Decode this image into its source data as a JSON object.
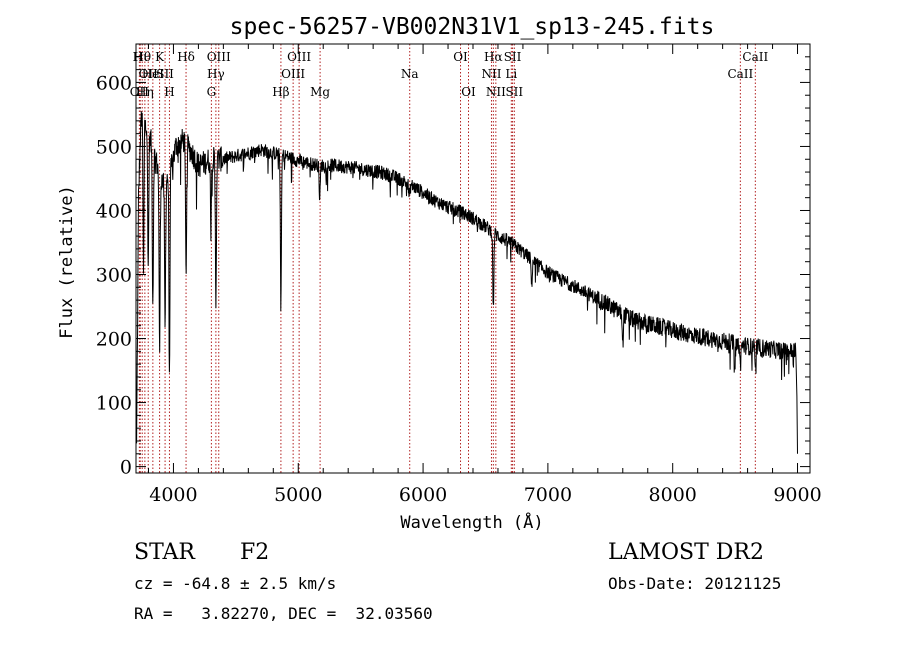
{
  "chart_data": {
    "type": "line",
    "title": "spec-56257-VB002N31V1_sp13-245.fits",
    "xlabel": "Wavelength (Å)",
    "ylabel": "Flux (relative)",
    "xlim": [
      3700,
      9100
    ],
    "ylim": [
      -10,
      660
    ],
    "xticks": [
      4000,
      5000,
      6000,
      7000,
      8000,
      9000
    ],
    "yticks": [
      0,
      100,
      200,
      300,
      400,
      500,
      600
    ],
    "grid": false,
    "line_color": "#000000",
    "marker_color": "#b22222",
    "continuum": [
      [
        3705,
        30
      ],
      [
        3720,
        420
      ],
      [
        3740,
        540
      ],
      [
        3760,
        560
      ],
      [
        3790,
        530
      ],
      [
        3830,
        500
      ],
      [
        3870,
        470
      ],
      [
        3920,
        440
      ],
      [
        3970,
        460
      ],
      [
        4020,
        500
      ],
      [
        4080,
        510
      ],
      [
        4150,
        490
      ],
      [
        4200,
        470
      ],
      [
        4300,
        480
      ],
      [
        4400,
        480
      ],
      [
        4500,
        485
      ],
      [
        4600,
        490
      ],
      [
        4700,
        495
      ],
      [
        4800,
        490
      ],
      [
        4900,
        485
      ],
      [
        5000,
        478
      ],
      [
        5100,
        473
      ],
      [
        5200,
        470
      ],
      [
        5300,
        470
      ],
      [
        5400,
        468
      ],
      [
        5500,
        465
      ],
      [
        5600,
        462
      ],
      [
        5700,
        457
      ],
      [
        5800,
        450
      ],
      [
        5900,
        440
      ],
      [
        6000,
        428
      ],
      [
        6100,
        415
      ],
      [
        6200,
        405
      ],
      [
        6300,
        398
      ],
      [
        6400,
        388
      ],
      [
        6500,
        375
      ],
      [
        6600,
        360
      ],
      [
        6700,
        350
      ],
      [
        6800,
        335
      ],
      [
        6900,
        318
      ],
      [
        7000,
        303
      ],
      [
        7100,
        292
      ],
      [
        7200,
        283
      ],
      [
        7300,
        272
      ],
      [
        7400,
        262
      ],
      [
        7500,
        250
      ],
      [
        7600,
        238
      ],
      [
        7700,
        228
      ],
      [
        7800,
        223
      ],
      [
        7900,
        218
      ],
      [
        8000,
        213
      ],
      [
        8100,
        208
      ],
      [
        8200,
        204
      ],
      [
        8300,
        200
      ],
      [
        8400,
        196
      ],
      [
        8500,
        192
      ],
      [
        8600,
        188
      ],
      [
        8700,
        186
      ],
      [
        8800,
        183
      ],
      [
        8900,
        180
      ],
      [
        8960,
        180
      ],
      [
        8985,
        185
      ],
      [
        8995,
        110
      ],
      [
        9000,
        20
      ]
    ],
    "absorption_features": [
      {
        "x": 3760,
        "depth": 260
      },
      {
        "x": 3798,
        "depth": 210
      },
      {
        "x": 3835,
        "depth": 240
      },
      {
        "x": 3889,
        "depth": 280
      },
      {
        "x": 3933,
        "depth": 230
      },
      {
        "x": 3968,
        "depth": 310
      },
      {
        "x": 4101,
        "depth": 200
      },
      {
        "x": 4300,
        "depth": 90
      },
      {
        "x": 4340,
        "depth": 220
      },
      {
        "x": 4861,
        "depth": 235
      },
      {
        "x": 5172,
        "depth": 55
      },
      {
        "x": 5890,
        "depth": 40
      },
      {
        "x": 6563,
        "depth": 120
      },
      {
        "x": 6870,
        "depth": 40
      },
      {
        "x": 7600,
        "depth": 45
      },
      {
        "x": 8498,
        "depth": 30
      },
      {
        "x": 8542,
        "depth": 35
      },
      {
        "x": 8662,
        "depth": 35
      }
    ],
    "emission_features": [
      {
        "x": 5890,
        "height": 40
      }
    ],
    "noise_amplitude": {
      "blue": 40,
      "mid": 22,
      "red": 28
    },
    "line_markers": [
      {
        "x": 3727,
        "label": "OII",
        "row": 3
      },
      {
        "x": 3734,
        "label": "Hι",
        "row": 1
      },
      {
        "x": 3750,
        "label": "Hθ",
        "row": 1
      },
      {
        "x": 3771,
        "label": "Hη",
        "row": 3
      },
      {
        "x": 3798,
        "label": "OII",
        "row": 2
      },
      {
        "x": 3835,
        "label": "HeI",
        "row": 2
      },
      {
        "x": 3889,
        "label": "K",
        "row": 1
      },
      {
        "x": 3933,
        "label": "SII",
        "row": 2
      },
      {
        "x": 3968,
        "label": "H",
        "row": 3
      },
      {
        "x": 4101,
        "label": "Hδ",
        "row": 1
      },
      {
        "x": 4304,
        "label": "G",
        "row": 3
      },
      {
        "x": 4340,
        "label": "Hγ",
        "row": 2
      },
      {
        "x": 4363,
        "label": "OIII",
        "row": 1
      },
      {
        "x": 4861,
        "label": "Hβ",
        "row": 3
      },
      {
        "x": 4959,
        "label": "OIII",
        "row": 2
      },
      {
        "x": 5007,
        "label": "OIII",
        "row": 1
      },
      {
        "x": 5175,
        "label": "Mg",
        "row": 3
      },
      {
        "x": 5893,
        "label": "Na",
        "row": 2
      },
      {
        "x": 6300,
        "label": "OI",
        "row": 1
      },
      {
        "x": 6364,
        "label": "OI",
        "row": 3
      },
      {
        "x": 6548,
        "label": "NII",
        "row": 2
      },
      {
        "x": 6563,
        "label": "Hα",
        "row": 1
      },
      {
        "x": 6583,
        "label": "NII",
        "row": 3
      },
      {
        "x": 6707,
        "label": "Li",
        "row": 2
      },
      {
        "x": 6717,
        "label": "SII",
        "row": 1
      },
      {
        "x": 6731,
        "label": "SII",
        "row": 3
      },
      {
        "x": 8542,
        "label": "CaII",
        "row": 2
      },
      {
        "x": 8662,
        "label": "CaII",
        "row": 1
      }
    ]
  },
  "info": {
    "object_class": "STAR",
    "subclass": "F2",
    "survey": "LAMOST DR2",
    "redshift": "cz = -64.8 ± 2.5 km/s",
    "obs_date": "Obs-Date: 20121125",
    "coords": "RA =   3.82270, DEC =  32.03560"
  }
}
